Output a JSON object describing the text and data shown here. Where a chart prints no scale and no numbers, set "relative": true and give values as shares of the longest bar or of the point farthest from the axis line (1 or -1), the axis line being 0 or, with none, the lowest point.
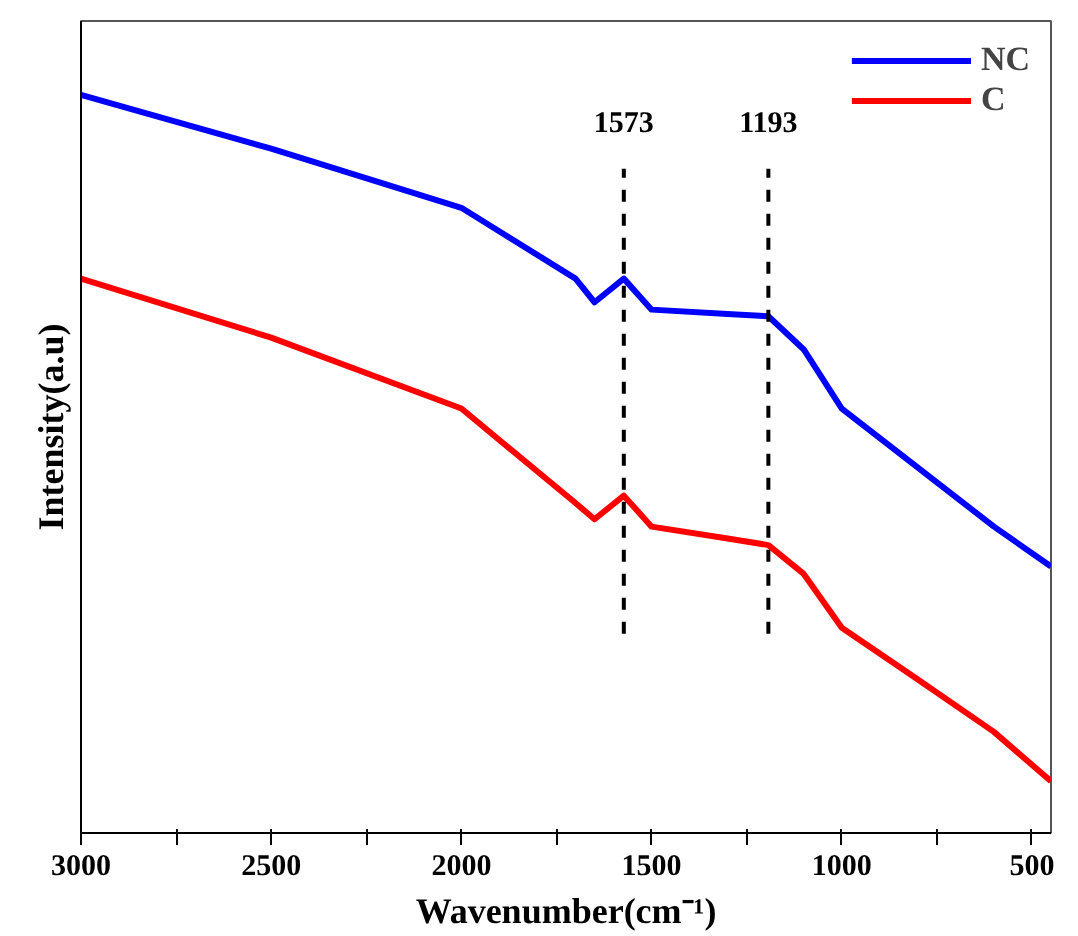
{
  "chart_data": {
    "type": "line",
    "relative": true,
    "xlabel": "Wavenumber(cm⁻¹)",
    "ylabel": "Intensity(a.u)",
    "x": [
      3000,
      2500,
      2000,
      1700,
      1650,
      1573,
      1500,
      1300,
      1193,
      1100,
      1000,
      800,
      600,
      450
    ],
    "series": [
      {
        "name": "NC",
        "color": "#0000ff",
        "values": [
          1.0,
          0.927,
          0.847,
          0.751,
          0.719,
          0.751,
          0.709,
          0.703,
          0.7,
          0.655,
          0.575,
          0.495,
          0.415,
          0.361
        ]
      },
      {
        "name": "C",
        "color": "#ff0000",
        "values": [
          0.751,
          0.671,
          0.575,
          0.447,
          0.425,
          0.457,
          0.415,
          0.399,
          0.39,
          0.351,
          0.278,
          0.208,
          0.137,
          0.07
        ]
      }
    ],
    "xlim": [
      3000,
      450
    ],
    "xticks": [
      3000,
      {
        "value": 2750,
        "label": null
      },
      2500,
      {
        "value": 2250,
        "label": null
      },
      2000,
      {
        "value": 1750,
        "label": null
      },
      1500,
      {
        "value": 1250,
        "label": null
      },
      1000,
      {
        "value": 750,
        "label": null
      },
      500
    ],
    "ref_lines": [
      {
        "axis": "x",
        "value": 1573,
        "label": "1573",
        "color": "#000000",
        "line_style": "dashed"
      },
      {
        "axis": "x",
        "value": 1193,
        "label": "1193",
        "color": "#000000",
        "line_style": "dashed"
      }
    ],
    "legend": "top right",
    "grid": false,
    "line_style": "solid"
  }
}
